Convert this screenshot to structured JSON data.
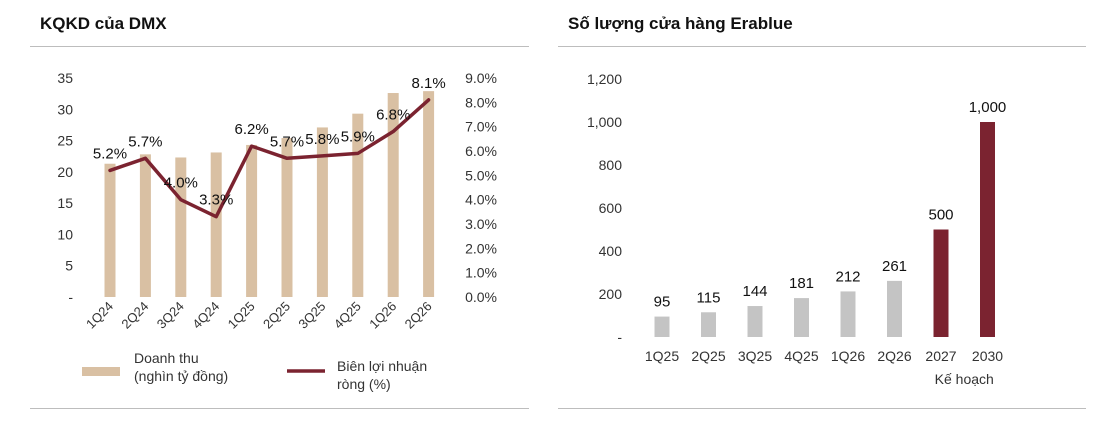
{
  "left_panel": {
    "title": "KQKD của DMX",
    "legend": {
      "bar_label_line1": "Doanh thu",
      "bar_label_line2": "(nghìn tỷ đồng)",
      "line_label_line1": "Biên lợi nhuận",
      "line_label_line2": "ròng (%)"
    }
  },
  "right_panel": {
    "title": "Số lượng cửa hàng Erablue",
    "plan_note": "Kế hoạch"
  },
  "chart_data": [
    {
      "type": "bar+line",
      "title": "KQKD của DMX",
      "categories": [
        "1Q24",
        "2Q24",
        "3Q24",
        "4Q24",
        "1Q25",
        "2Q25",
        "3Q25",
        "4Q25",
        "1Q26",
        "2Q26"
      ],
      "series": [
        {
          "name": "Doanh thu (nghìn tỷ đồng)",
          "type": "bar",
          "axis": "left",
          "values": [
            21.3,
            22.8,
            22.3,
            23.1,
            24.3,
            25.4,
            27.1,
            29.3,
            32.6,
            32.9
          ],
          "color": "#d9c0a3"
        },
        {
          "name": "Biên lợi nhuận ròng (%)",
          "type": "line",
          "axis": "right",
          "values": [
            5.2,
            5.7,
            4.0,
            3.3,
            6.2,
            5.7,
            5.8,
            5.9,
            6.8,
            8.1
          ],
          "labels": [
            "5.2%",
            "5.7%",
            "4.0%",
            "3.3%",
            "6.2%",
            "5.7%",
            "5.8%",
            "5.9%",
            "6.8%",
            "8.1%"
          ],
          "color": "#7b2330"
        }
      ],
      "y_left": {
        "ylim": [
          0,
          35
        ],
        "ticks": [
          "-",
          "5",
          "10",
          "15",
          "20",
          "25",
          "30",
          "35"
        ]
      },
      "y_right": {
        "ylim": [
          0,
          9
        ],
        "ticks": [
          "0.0%",
          "1.0%",
          "2.0%",
          "3.0%",
          "4.0%",
          "5.0%",
          "6.0%",
          "7.0%",
          "8.0%",
          "9.0%"
        ]
      },
      "grid": false,
      "legend_position": "bottom"
    },
    {
      "type": "bar",
      "title": "Số lượng cửa hàng Erablue",
      "categories": [
        "1Q25",
        "2Q25",
        "3Q25",
        "4Q25",
        "1Q26",
        "2Q26",
        "2027",
        "2030"
      ],
      "values": [
        95,
        115,
        144,
        181,
        212,
        261,
        500,
        1000
      ],
      "labels": [
        "95",
        "115",
        "144",
        "181",
        "212",
        "261",
        "500",
        "1,000"
      ],
      "bar_colors": [
        "#c4c4c4",
        "#c4c4c4",
        "#c4c4c4",
        "#c4c4c4",
        "#c4c4c4",
        "#c4c4c4",
        "#7b2330",
        "#7b2330"
      ],
      "ylim": [
        0,
        1200
      ],
      "y_ticks": [
        "-",
        "200",
        "400",
        "600",
        "800",
        "1,000",
        "1,200"
      ],
      "grid": false,
      "legend_position": "none"
    }
  ]
}
